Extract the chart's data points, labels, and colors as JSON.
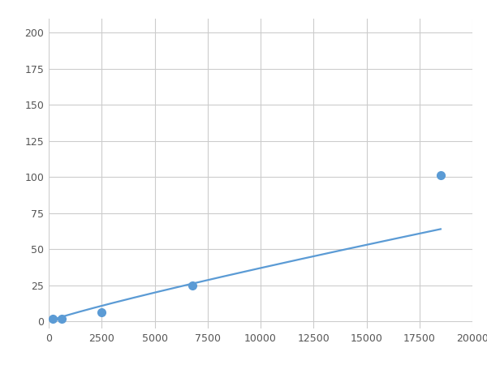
{
  "x": [
    200,
    600,
    2500,
    6800,
    18500
  ],
  "y": [
    2,
    2,
    6,
    25,
    101
  ],
  "line_color": "#5B9BD5",
  "marker_color": "#5B9BD5",
  "marker_size": 7,
  "line_width": 1.6,
  "xlim": [
    0,
    20000
  ],
  "ylim": [
    -5,
    210
  ],
  "xticks": [
    0,
    2500,
    5000,
    7500,
    10000,
    12500,
    15000,
    17500,
    20000
  ],
  "yticks": [
    0,
    25,
    50,
    75,
    100,
    125,
    150,
    175,
    200
  ],
  "grid_color": "#CCCCCC",
  "background_color": "#FFFFFF",
  "fig_background": "#FFFFFF"
}
